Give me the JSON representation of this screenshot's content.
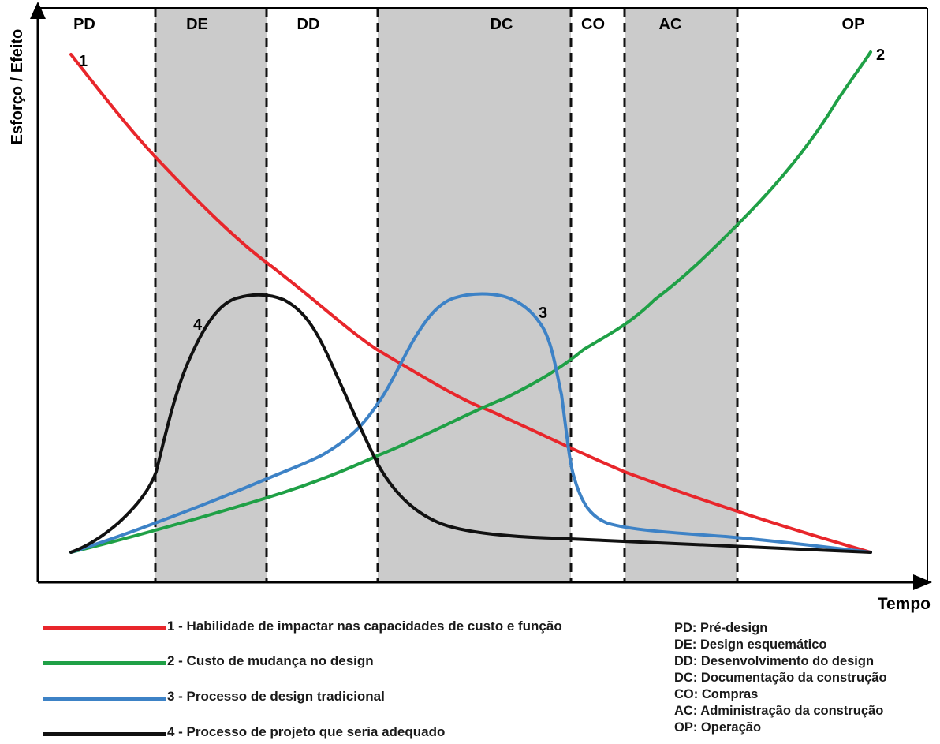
{
  "axes": {
    "y_label": "Esforço / Efeito",
    "x_label": "Tempo"
  },
  "phases": [
    {
      "code": "PD",
      "shaded": false
    },
    {
      "code": "DE",
      "shaded": true
    },
    {
      "code": "DD",
      "shaded": false
    },
    {
      "code": "DC",
      "shaded": true
    },
    {
      "code": "CO",
      "shaded": false
    },
    {
      "code": "AC",
      "shaded": true
    },
    {
      "code": "OP",
      "shaded": false
    }
  ],
  "curves": [
    {
      "number": "1",
      "color": "#e8262b"
    },
    {
      "number": "2",
      "color": "#1fa046"
    },
    {
      "number": "3",
      "color": "#3d82c6"
    },
    {
      "number": "4",
      "color": "#111111"
    }
  ],
  "legend": [
    {
      "text": "1 - Habilidade de impactar nas capacidades de custo e função",
      "color": "#e8262b"
    },
    {
      "text": "2 - Custo de mudança no design",
      "color": "#1fa046"
    },
    {
      "text": "3 - Processo de design tradicional",
      "color": "#3d82c6"
    },
    {
      "text": "4 - Processo de projeto que seria adequado",
      "color": "#111111"
    }
  ],
  "abbreviations": [
    "PD: Pré-design",
    "DE: Design esquemático",
    "DD: Desenvolvimento do design",
    "DC: Documentação da construção",
    "CO: Compras",
    "AC: Administração da construção",
    "OP: Operação"
  ],
  "colors": {
    "shading": "#cbcbcb",
    "axis": "#000000"
  }
}
